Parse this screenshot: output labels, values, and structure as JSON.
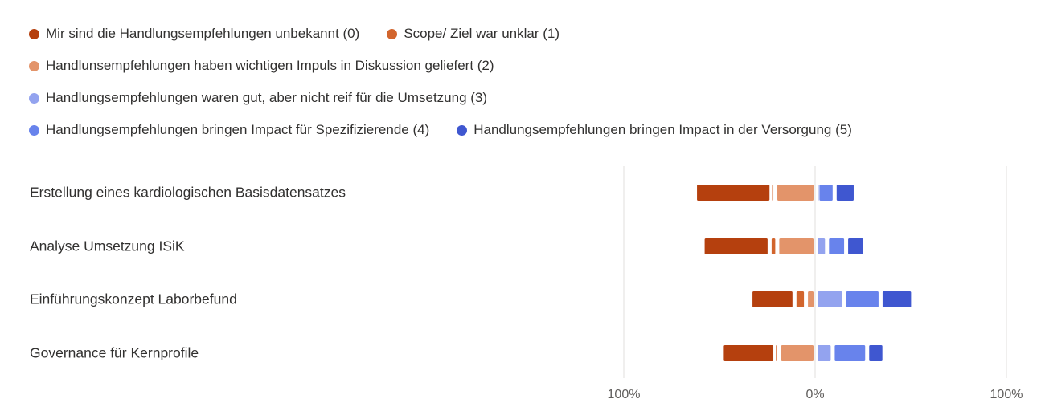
{
  "chart_data": {
    "type": "bar",
    "subtype": "diverging-stacked-bar",
    "legend_position": "top",
    "grid": true,
    "xlim": [
      -100,
      100
    ],
    "x_tick_labels": [
      "100%",
      "0%",
      "100%"
    ],
    "series": [
      {
        "name": "Mir sind die Handlungsempfehlungen unbekannt (0)",
        "color": "#B5400E",
        "side": "negative",
        "values": [
          40,
          35,
          23,
          28
        ]
      },
      {
        "name": "Scope/ Ziel war unklar (1)",
        "color": "#D2652D",
        "side": "negative",
        "values": [
          2,
          4,
          6,
          2
        ]
      },
      {
        "name": "Handlunsempfehlungen haben wichtigen Impuls in Diskussion geliefert (2)",
        "color": "#E3946A",
        "side": "negative",
        "values": [
          21,
          20,
          5,
          19
        ]
      },
      {
        "name": "Handlungsempfehlungen waren gut, aber nicht reif für die Umsetzung (3)",
        "color": "#93A3EF",
        "side": "positive",
        "values": [
          1,
          6,
          15,
          9
        ]
      },
      {
        "name": "Handlungsempfehlungen bringen Impact für Spezifizierende (4)",
        "color": "#6883EC",
        "side": "positive",
        "values": [
          9,
          10,
          19,
          18
        ]
      },
      {
        "name": "Handlungsempfehlungen bringen Impact in der Versorgung (5)",
        "color": "#3F57D0",
        "side": "positive",
        "values": [
          11,
          10,
          17,
          9
        ]
      }
    ],
    "categories": [
      "Erstellung eines kardiologischen Basisdatensatzes",
      "Analyse Umsetzung ISiK",
      "Einführungskonzept Laborbefund",
      "Governance für Kernprofile"
    ]
  },
  "legend_rows": [
    [
      0,
      1
    ],
    [
      2
    ],
    [
      3
    ],
    [
      4,
      5
    ]
  ]
}
